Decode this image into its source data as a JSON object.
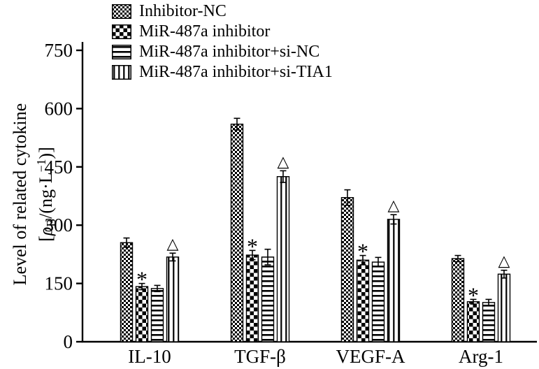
{
  "y_axis": {
    "line1": "Level of related cytokine",
    "bracket_open": "[",
    "rho": "ρ",
    "sub": "B",
    "mid": "/(ng·L",
    "sup": "−1",
    "close": ")]"
  },
  "chart_data": {
    "type": "bar",
    "title": "",
    "ylabel": "Level of related cytokine [ρB/(ng·L−1)]",
    "categories": [
      "IL-10",
      "TGF-β",
      "VEGF-A",
      "Arg-1"
    ],
    "series": [
      {
        "name": "Inhibitor-NC",
        "pattern": "checker-small",
        "values": [
          255,
          560,
          371,
          214
        ],
        "errors": [
          12,
          15,
          20,
          8
        ],
        "annotation": ""
      },
      {
        "name": "MiR-487a inhibitor",
        "pattern": "checker-large",
        "values": [
          142,
          223,
          210,
          103
        ],
        "errors": [
          8,
          12,
          12,
          6
        ],
        "annotation": "*"
      },
      {
        "name": "MiR-487a inhibitor+si-NC",
        "pattern": "hlines",
        "values": [
          137,
          218,
          205,
          101
        ],
        "errors": [
          8,
          20,
          12,
          8
        ],
        "annotation": ""
      },
      {
        "name": "MiR-487a inhibitor+si-TIA1",
        "pattern": "vlines",
        "values": [
          218,
          425,
          315,
          174
        ],
        "errors": [
          10,
          15,
          12,
          10
        ],
        "annotation": "△"
      }
    ],
    "ylim": [
      0,
      750
    ],
    "yticks": [
      0,
      150,
      300,
      450,
      600,
      750
    ],
    "grid": false,
    "legend_position": "upper-left"
  }
}
